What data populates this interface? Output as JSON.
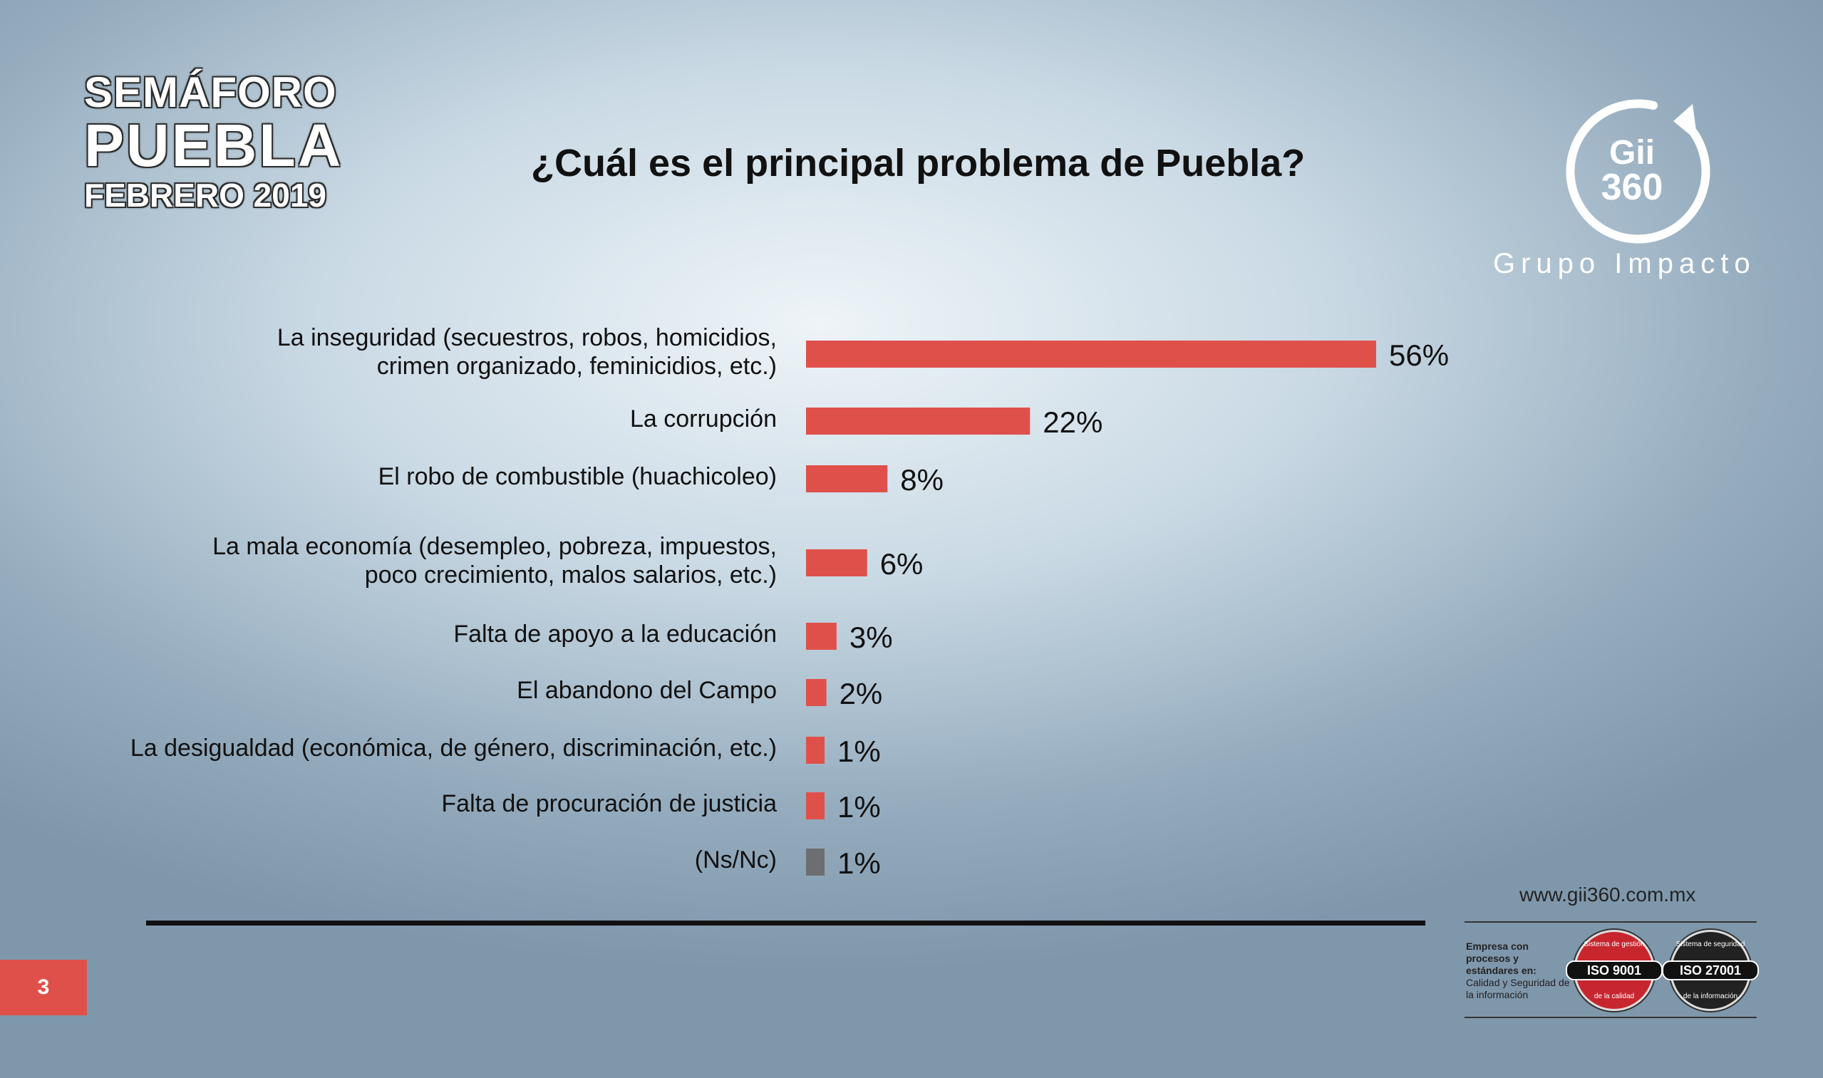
{
  "header": {
    "brand_line1": "SEMÁFORO",
    "brand_line2": "PUEBLA",
    "brand_line3": "FEBRERO 2019"
  },
  "logo": {
    "line1": "Gii",
    "line2": "360",
    "company": "Grupo Impacto",
    "icon": "circular-arrow-icon"
  },
  "chart_data": {
    "type": "bar",
    "orientation": "horizontal",
    "title": "¿Cuál es el principal problema de Puebla?",
    "categories": [
      [
        "La inseguridad (secuestros, robos, homicidios,",
        "crimen organizado, feminicidios, etc.)"
      ],
      [
        "La corrupción"
      ],
      [
        "El robo de combustible (huachicoleo)"
      ],
      [
        "La mala economía (desempleo, pobreza, impuestos,",
        "poco crecimiento, malos salarios, etc.)"
      ],
      [
        "Falta de apoyo a la educación"
      ],
      [
        "El abandono del Campo"
      ],
      [
        "La desigualdad (económica, de género, discriminación, etc.)"
      ],
      [
        "Falta de procuración de justicia"
      ],
      [
        "(Ns/Nc)"
      ]
    ],
    "values": [
      56,
      22,
      8,
      6,
      3,
      2,
      1,
      1,
      1
    ],
    "value_labels": [
      "56%",
      "22%",
      "8%",
      "6%",
      "3%",
      "2%",
      "1%",
      "1%",
      "1%"
    ],
    "colors": [
      "#e0504b",
      "#e0504b",
      "#e0504b",
      "#e0504b",
      "#e0504b",
      "#e0504b",
      "#e0504b",
      "#e0504b",
      "#6d6e71"
    ],
    "legend": "none",
    "grid": false
  },
  "footer": {
    "page_number": "3",
    "url": "www.gii360.com.mx",
    "cert_heading": "Empresa con procesos y estándares en:",
    "cert_sub": "Calidad y Seguridad de la información",
    "seal1_label": "ISO 9001",
    "seal1_top": "Sistema de gestión",
    "seal1_bottom": "de la calidad",
    "seal2_label": "ISO 27001",
    "seal2_top": "Sistema de seguridad",
    "seal2_bottom": "de la información"
  },
  "colors": {
    "accent": "#e0504b",
    "neutral_bar": "#6d6e71"
  }
}
